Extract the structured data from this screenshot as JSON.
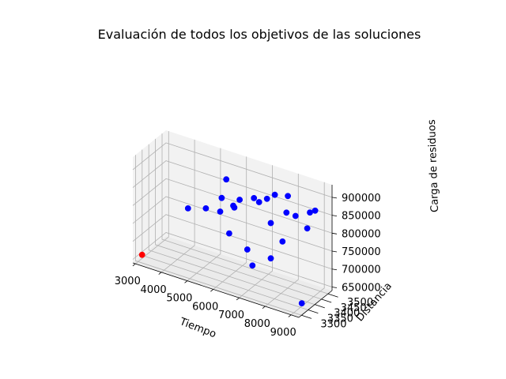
{
  "chart_data": {
    "type": "scatter",
    "title": "Evaluación de todos los objetivos de las soluciones",
    "xlabel": "Tiempo",
    "ylabel": "Distancia",
    "zlabel": "Carga de residuos",
    "xlim": [
      2900,
      9300
    ],
    "ylim": [
      3280,
      3530
    ],
    "zlim": [
      640000,
      935000
    ],
    "x_ticks": [
      "3000",
      "4000",
      "5000",
      "6000",
      "7000",
      "8000",
      "9000"
    ],
    "y_ticks": [
      "3300",
      "3350",
      "3400",
      "3450",
      "3500"
    ],
    "z_ticks": [
      "650000",
      "700000",
      "750000",
      "800000",
      "850000",
      "900000"
    ],
    "pane_color": "#f2f2f2",
    "grid": true,
    "series": [
      {
        "color": "#0000ff",
        "points": [
          [
            7400,
            3470,
            880000
          ],
          [
            7200,
            3450,
            870000
          ],
          [
            7000,
            3430,
            862000
          ],
          [
            7800,
            3490,
            880000
          ],
          [
            6300,
            3420,
            855000
          ],
          [
            6700,
            3450,
            860000
          ],
          [
            6300,
            3380,
            845000
          ],
          [
            5900,
            3450,
            820000
          ],
          [
            5500,
            3430,
            800000
          ],
          [
            5200,
            3500,
            810000
          ],
          [
            5000,
            3420,
            800000
          ],
          [
            8600,
            3500,
            850000
          ],
          [
            8200,
            3470,
            840000
          ],
          [
            7900,
            3460,
            845000
          ],
          [
            8800,
            3500,
            860000
          ],
          [
            7400,
            3440,
            810000
          ],
          [
            8700,
            3460,
            820000
          ],
          [
            3900,
            3500,
            750000
          ],
          [
            6400,
            3300,
            950000
          ],
          [
            7800,
            3450,
            765000
          ],
          [
            6000,
            3400,
            760000
          ],
          [
            6800,
            3380,
            740000
          ],
          [
            7500,
            3420,
            720000
          ],
          [
            8900,
            3380,
            640000
          ],
          [
            7000,
            3380,
            700000
          ]
        ]
      },
      {
        "color": "#ff0000",
        "points": [
          [
            3000,
            3330,
            650000
          ]
        ]
      }
    ]
  }
}
